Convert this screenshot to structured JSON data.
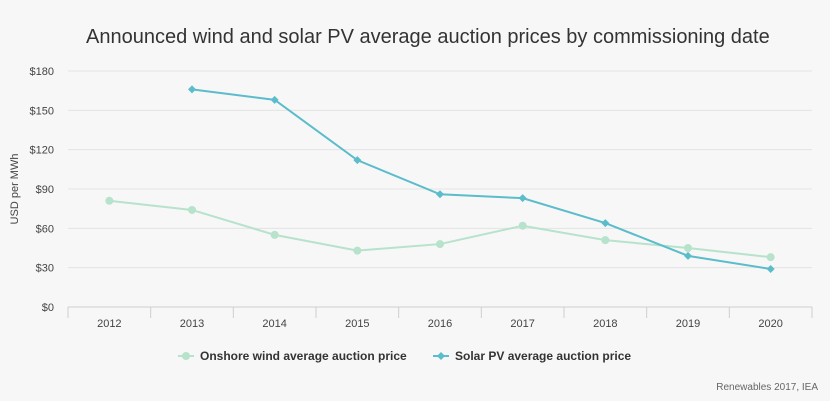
{
  "chart_data": {
    "type": "line",
    "title": "Announced wind and solar PV average auction prices by commissioning date",
    "ylabel": "USD per MWh",
    "xlabel": "",
    "categories": [
      "2012",
      "2013",
      "2014",
      "2015",
      "2016",
      "2017",
      "2018",
      "2019",
      "2020"
    ],
    "ylim": [
      0,
      180
    ],
    "yticks": [
      0,
      30,
      60,
      90,
      120,
      150,
      180
    ],
    "ytick_labels": [
      "$0",
      "$30",
      "$60",
      "$90",
      "$120",
      "$150",
      "$180"
    ],
    "grid": "horizontal",
    "legend_position": "bottom-center",
    "series": [
      {
        "name": "Onshore wind average auction price",
        "color": "#b7e2cc",
        "marker": "circle",
        "values": [
          81,
          74,
          55,
          43,
          48,
          62,
          51,
          45,
          38
        ]
      },
      {
        "name": "Solar PV average auction price",
        "color": "#5bbccb",
        "marker": "diamond",
        "values": [
          null,
          166,
          158,
          112,
          86,
          83,
          64,
          39,
          29
        ]
      }
    ]
  },
  "source": "Renewables 2017, IEA"
}
